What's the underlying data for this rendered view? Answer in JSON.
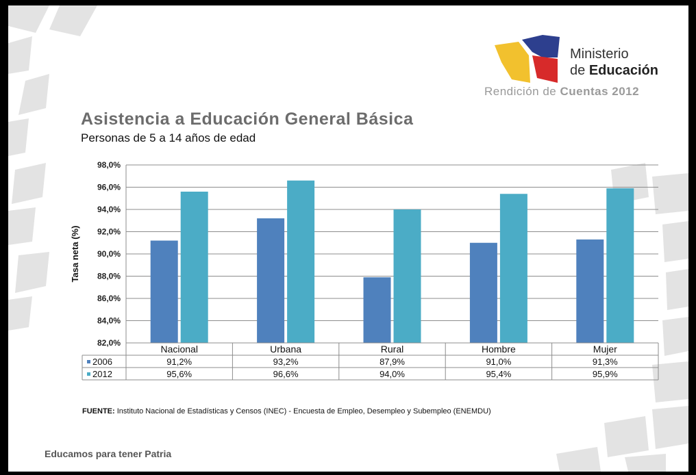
{
  "header": {
    "logo_line1": "Ministerio",
    "logo_line2_prefix": "de ",
    "logo_line2_bold": "Educación",
    "report_prefix": "Rendición de ",
    "report_bold": "Cuentas 2012"
  },
  "title": "Asistencia a Educación General Básica",
  "subtitle": "Personas de 5 a 14 años de edad",
  "source_label": "FUENTE:",
  "source_text": " Instituto Nacional de Estadísticas y Censos (INEC) - Encuesta de Empleo, Desempleo y Subempleo (ENEMDU)",
  "footer": "Educamos para tener Patria",
  "colors": {
    "series_2006": "#4f81bd",
    "series_2012": "#4bacc6"
  },
  "chart_data": {
    "type": "bar",
    "ylabel": "Tasa neta (%)",
    "xlabel": "",
    "ylim": [
      82,
      98
    ],
    "yticks": [
      "82,0%",
      "84,0%",
      "86,0%",
      "88,0%",
      "90,0%",
      "92,0%",
      "94,0%",
      "96,0%",
      "98,0%"
    ],
    "categories": [
      "Nacional",
      "Urbana",
      "Rural",
      "Hombre",
      "Mujer"
    ],
    "series": [
      {
        "name": "2006",
        "values": [
          91.2,
          93.2,
          87.9,
          91.0,
          91.3
        ],
        "labels": [
          "91,2%",
          "93,2%",
          "87,9%",
          "91,0%",
          "91,3%"
        ]
      },
      {
        "name": "2012",
        "values": [
          95.6,
          96.6,
          94.0,
          95.4,
          95.9
        ],
        "labels": [
          "95,6%",
          "96,6%",
          "94,0%",
          "95,4%",
          "95,9%"
        ]
      }
    ],
    "grid": true,
    "legend": "data-table"
  }
}
